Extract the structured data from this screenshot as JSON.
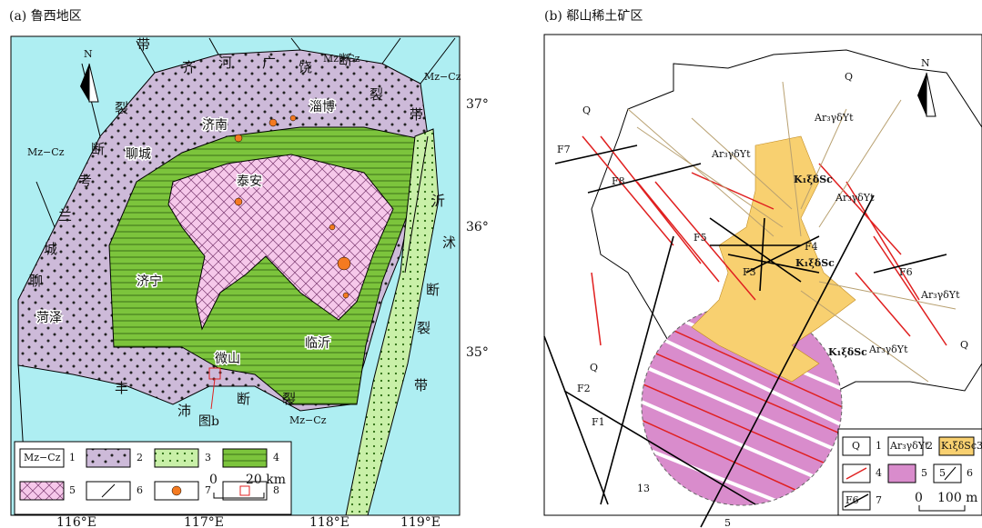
{
  "panel_a": {
    "title": "(a) 鲁西地区",
    "units": [
      "Mz−Cz",
      "Mz−Cz",
      "Mz−Cz",
      "Mz−Cz"
    ],
    "cities": [
      "济南",
      "淄博",
      "聊城",
      "泰安",
      "济宁",
      "菏泽",
      "微山",
      "临沂"
    ],
    "western_fault": [
      "聊",
      "城",
      "兰",
      "考",
      "断",
      "裂",
      "带"
    ],
    "northern_fault": [
      "齐",
      "河",
      "广",
      "饶",
      "断",
      "裂",
      "带"
    ],
    "eastern_fault": [
      "沂",
      "沭",
      "断",
      "裂",
      "带"
    ],
    "southern_fault": [
      "丰",
      "沛",
      "断",
      "裂"
    ],
    "callout": "图b",
    "north": "N",
    "lat_labels": [
      "37°",
      "36°",
      "35°"
    ],
    "lon_labels": [
      "116°E",
      "117°E",
      "118°E",
      "119°E"
    ],
    "legend": {
      "symbol_text": "Mz−Cz",
      "numbers": [
        "1",
        "2",
        "3",
        "4",
        "5",
        "6",
        "7",
        "8"
      ],
      "scale_zero": "0",
      "scale_label": "20 km"
    }
  },
  "panel_b": {
    "title": "(b) 郗山稀土矿区",
    "north": "N",
    "q_labels": [
      "Q",
      "Q",
      "Q",
      "Q"
    ],
    "faults": [
      "F7",
      "F8",
      "F5",
      "F4",
      "F3",
      "F6",
      "F2",
      "F1"
    ],
    "granite_labels": [
      "Ar₃γδYt",
      "Ar₃γδYt",
      "Ar₃γδYt",
      "Ar₃γδYt",
      "Ar₃γδYt"
    ],
    "syenite_labels": [
      "K₁ξδSc",
      "K₁ξδSc",
      "K₁ξδSc"
    ],
    "line_labels": [
      "13",
      "5"
    ],
    "legend": {
      "texts": [
        "Q",
        "Ar₃γδYt",
        "K₁ξδSc",
        "5",
        "F6"
      ],
      "numbers": [
        "1",
        "2",
        "3",
        "4",
        "5",
        "6",
        "7"
      ],
      "scale_zero": "0",
      "scale_label": "100 m"
    }
  }
}
